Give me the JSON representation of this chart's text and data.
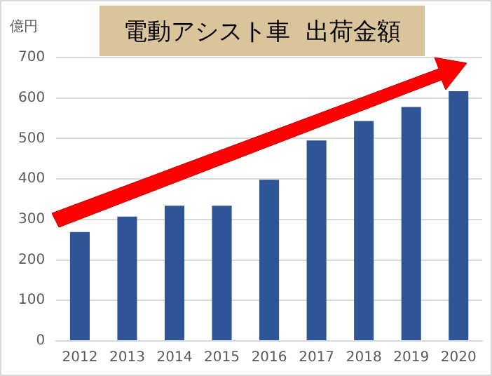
{
  "chart_data": {
    "type": "bar",
    "title": "電動アシスト車  出荷金額",
    "ylabel": "億円",
    "categories": [
      "2012",
      "2013",
      "2014",
      "2015",
      "2016",
      "2017",
      "2018",
      "2019",
      "2020"
    ],
    "values": [
      269,
      307,
      334,
      334,
      398,
      495,
      543,
      578,
      617
    ],
    "color": "#2f5597",
    "ylim": [
      0,
      700
    ],
    "yticks": [
      0,
      100,
      200,
      300,
      400,
      500,
      600,
      700
    ],
    "grid": "y",
    "legend": false
  }
}
